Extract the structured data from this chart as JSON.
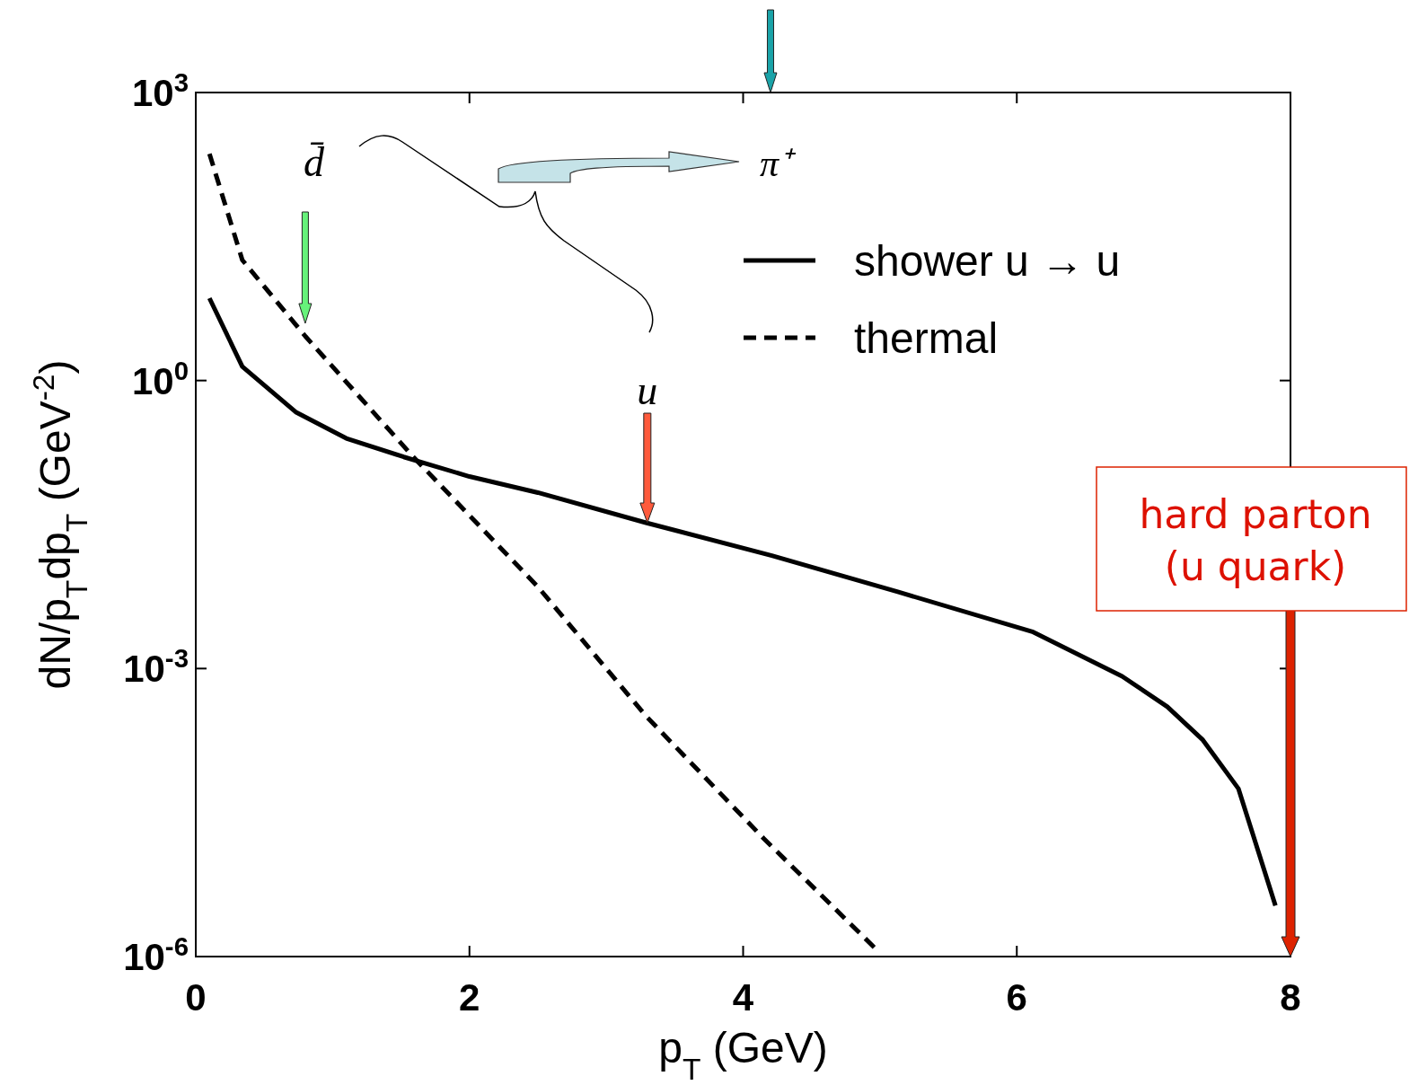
{
  "chart_data": {
    "type": "line",
    "xlabel": "p$_{T}$ (GeV)",
    "ylabel": "dN/p$_{T}$dp$_{T}$ (GeV$^{-2}$)",
    "log": "y",
    "xlim": [
      0,
      8
    ],
    "xticks": [
      0,
      2,
      4,
      6,
      8
    ],
    "ylim": [
      1e-06,
      1000
    ],
    "yticks": [
      {
        "value": 1000,
        "label": "10$^{3}$"
      },
      {
        "value": 1,
        "label": "10$^{0}$"
      },
      {
        "value": 0.001,
        "label": "10$^{-3}$"
      },
      {
        "value": 1e-06,
        "label": "10$^{-6}$"
      }
    ],
    "legend": "top right",
    "grid": false,
    "series": [
      {
        "name": "shower u → u",
        "color": "#000000",
        "line_style": "solid",
        "x": [
          0.1,
          0.34,
          0.73,
          1.1,
          1.52,
          2.0,
          2.5,
          3.29,
          4.21,
          5.13,
          6.12,
          6.77,
          7.1,
          7.36,
          7.62,
          7.89
        ],
        "values": [
          7.2,
          1.4,
          0.47,
          0.25,
          0.16,
          0.1,
          0.068,
          0.033,
          0.015,
          0.0063,
          0.0024,
          0.00083,
          0.0004,
          0.00018,
          5.6e-05,
          3.4e-06
        ]
      },
      {
        "name": "thermal",
        "color": "#000000",
        "line_style": "dashed",
        "x": [
          0.1,
          0.34,
          0.8,
          1.59,
          2.5,
          3.29,
          4.15,
          4.97
        ],
        "values": [
          230,
          18,
          2.9,
          0.16,
          0.0071,
          0.00032,
          1.7e-05,
          1.2e-06
        ]
      }
    ],
    "annotations": [
      "d̄",
      "π⁺",
      {
        "text": "u",
        "x": 3.3,
        "y": 0.033
      },
      "hard parton (u quark)"
    ]
  }
}
